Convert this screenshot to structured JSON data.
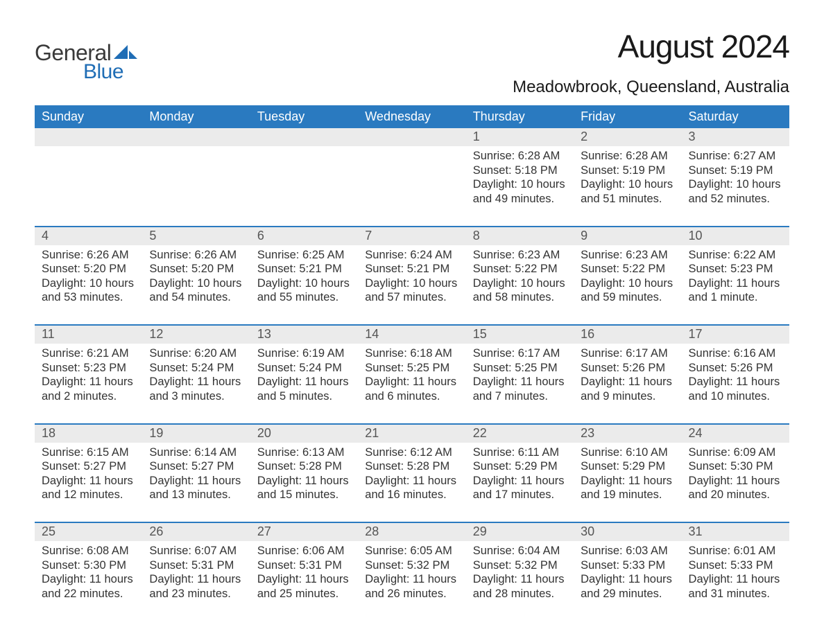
{
  "logo": {
    "text1": "General",
    "text2": "Blue",
    "sail_color": "#1f6db5"
  },
  "title": "August 2024",
  "location": "Meadowbrook, Queensland, Australia",
  "colors": {
    "header_bg": "#2a7ac0",
    "header_text": "#ffffff",
    "daynum_bg": "#ebebeb",
    "row_border": "#2a7ac0",
    "body_text": "#333333"
  },
  "day_headers": [
    "Sunday",
    "Monday",
    "Tuesday",
    "Wednesday",
    "Thursday",
    "Friday",
    "Saturday"
  ],
  "weeks": [
    [
      {
        "n": "",
        "lines": []
      },
      {
        "n": "",
        "lines": []
      },
      {
        "n": "",
        "lines": []
      },
      {
        "n": "",
        "lines": []
      },
      {
        "n": "1",
        "lines": [
          "Sunrise: 6:28 AM",
          "Sunset: 5:18 PM",
          "Daylight: 10 hours and 49 minutes."
        ]
      },
      {
        "n": "2",
        "lines": [
          "Sunrise: 6:28 AM",
          "Sunset: 5:19 PM",
          "Daylight: 10 hours and 51 minutes."
        ]
      },
      {
        "n": "3",
        "lines": [
          "Sunrise: 6:27 AM",
          "Sunset: 5:19 PM",
          "Daylight: 10 hours and 52 minutes."
        ]
      }
    ],
    [
      {
        "n": "4",
        "lines": [
          "Sunrise: 6:26 AM",
          "Sunset: 5:20 PM",
          "Daylight: 10 hours and 53 minutes."
        ]
      },
      {
        "n": "5",
        "lines": [
          "Sunrise: 6:26 AM",
          "Sunset: 5:20 PM",
          "Daylight: 10 hours and 54 minutes."
        ]
      },
      {
        "n": "6",
        "lines": [
          "Sunrise: 6:25 AM",
          "Sunset: 5:21 PM",
          "Daylight: 10 hours and 55 minutes."
        ]
      },
      {
        "n": "7",
        "lines": [
          "Sunrise: 6:24 AM",
          "Sunset: 5:21 PM",
          "Daylight: 10 hours and 57 minutes."
        ]
      },
      {
        "n": "8",
        "lines": [
          "Sunrise: 6:23 AM",
          "Sunset: 5:22 PM",
          "Daylight: 10 hours and 58 minutes."
        ]
      },
      {
        "n": "9",
        "lines": [
          "Sunrise: 6:23 AM",
          "Sunset: 5:22 PM",
          "Daylight: 10 hours and 59 minutes."
        ]
      },
      {
        "n": "10",
        "lines": [
          "Sunrise: 6:22 AM",
          "Sunset: 5:23 PM",
          "Daylight: 11 hours and 1 minute."
        ]
      }
    ],
    [
      {
        "n": "11",
        "lines": [
          "Sunrise: 6:21 AM",
          "Sunset: 5:23 PM",
          "Daylight: 11 hours and 2 minutes."
        ]
      },
      {
        "n": "12",
        "lines": [
          "Sunrise: 6:20 AM",
          "Sunset: 5:24 PM",
          "Daylight: 11 hours and 3 minutes."
        ]
      },
      {
        "n": "13",
        "lines": [
          "Sunrise: 6:19 AM",
          "Sunset: 5:24 PM",
          "Daylight: 11 hours and 5 minutes."
        ]
      },
      {
        "n": "14",
        "lines": [
          "Sunrise: 6:18 AM",
          "Sunset: 5:25 PM",
          "Daylight: 11 hours and 6 minutes."
        ]
      },
      {
        "n": "15",
        "lines": [
          "Sunrise: 6:17 AM",
          "Sunset: 5:25 PM",
          "Daylight: 11 hours and 7 minutes."
        ]
      },
      {
        "n": "16",
        "lines": [
          "Sunrise: 6:17 AM",
          "Sunset: 5:26 PM",
          "Daylight: 11 hours and 9 minutes."
        ]
      },
      {
        "n": "17",
        "lines": [
          "Sunrise: 6:16 AM",
          "Sunset: 5:26 PM",
          "Daylight: 11 hours and 10 minutes."
        ]
      }
    ],
    [
      {
        "n": "18",
        "lines": [
          "Sunrise: 6:15 AM",
          "Sunset: 5:27 PM",
          "Daylight: 11 hours and 12 minutes."
        ]
      },
      {
        "n": "19",
        "lines": [
          "Sunrise: 6:14 AM",
          "Sunset: 5:27 PM",
          "Daylight: 11 hours and 13 minutes."
        ]
      },
      {
        "n": "20",
        "lines": [
          "Sunrise: 6:13 AM",
          "Sunset: 5:28 PM",
          "Daylight: 11 hours and 15 minutes."
        ]
      },
      {
        "n": "21",
        "lines": [
          "Sunrise: 6:12 AM",
          "Sunset: 5:28 PM",
          "Daylight: 11 hours and 16 minutes."
        ]
      },
      {
        "n": "22",
        "lines": [
          "Sunrise: 6:11 AM",
          "Sunset: 5:29 PM",
          "Daylight: 11 hours and 17 minutes."
        ]
      },
      {
        "n": "23",
        "lines": [
          "Sunrise: 6:10 AM",
          "Sunset: 5:29 PM",
          "Daylight: 11 hours and 19 minutes."
        ]
      },
      {
        "n": "24",
        "lines": [
          "Sunrise: 6:09 AM",
          "Sunset: 5:30 PM",
          "Daylight: 11 hours and 20 minutes."
        ]
      }
    ],
    [
      {
        "n": "25",
        "lines": [
          "Sunrise: 6:08 AM",
          "Sunset: 5:30 PM",
          "Daylight: 11 hours and 22 minutes."
        ]
      },
      {
        "n": "26",
        "lines": [
          "Sunrise: 6:07 AM",
          "Sunset: 5:31 PM",
          "Daylight: 11 hours and 23 minutes."
        ]
      },
      {
        "n": "27",
        "lines": [
          "Sunrise: 6:06 AM",
          "Sunset: 5:31 PM",
          "Daylight: 11 hours and 25 minutes."
        ]
      },
      {
        "n": "28",
        "lines": [
          "Sunrise: 6:05 AM",
          "Sunset: 5:32 PM",
          "Daylight: 11 hours and 26 minutes."
        ]
      },
      {
        "n": "29",
        "lines": [
          "Sunrise: 6:04 AM",
          "Sunset: 5:32 PM",
          "Daylight: 11 hours and 28 minutes."
        ]
      },
      {
        "n": "30",
        "lines": [
          "Sunrise: 6:03 AM",
          "Sunset: 5:33 PM",
          "Daylight: 11 hours and 29 minutes."
        ]
      },
      {
        "n": "31",
        "lines": [
          "Sunrise: 6:01 AM",
          "Sunset: 5:33 PM",
          "Daylight: 11 hours and 31 minutes."
        ]
      }
    ]
  ]
}
